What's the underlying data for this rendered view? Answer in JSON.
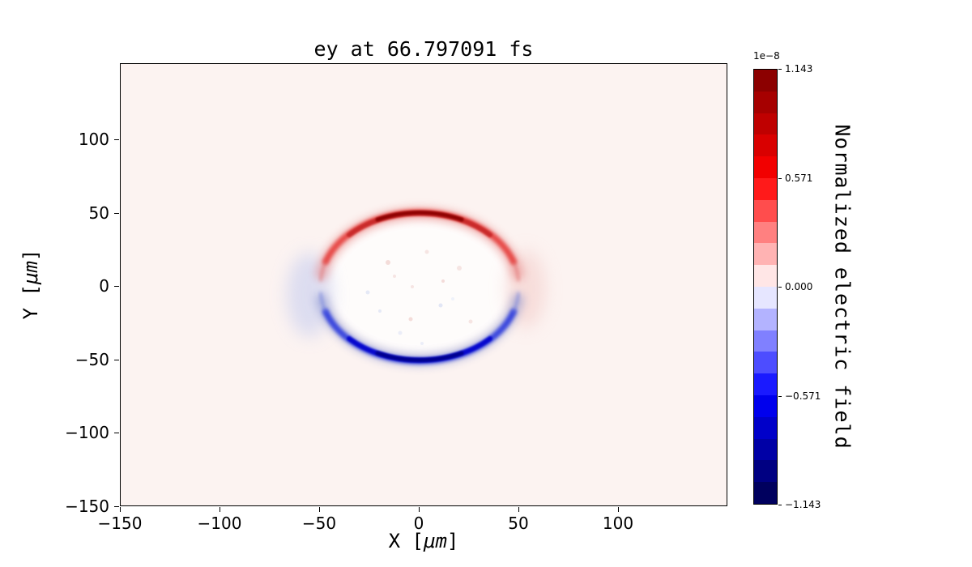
{
  "figure": {
    "title": "ey at 66.797091 fs"
  },
  "axes": {
    "xlabel": "X [μm]",
    "xlabel_parts": {
      "pre": "X [",
      "unit": "μm",
      "post": "]"
    },
    "ylabel": "Y [μm]",
    "ylabel_parts": {
      "pre": "Y [",
      "unit": "μm",
      "post": "]"
    },
    "x_ticks": [
      "−150",
      "−100",
      "−50",
      "0",
      "50",
      "100"
    ],
    "y_ticks": [
      "100",
      "50",
      "0",
      "−50",
      "−100",
      "−150"
    ]
  },
  "colorbar": {
    "label": "Normalized electric field",
    "offset_text": "1e−8",
    "ticks": [
      "1.143",
      "0.571",
      "0.000",
      "−0.571",
      "−1.143"
    ],
    "colormap": "seismic",
    "band_colors": [
      "#8c0000",
      "#a60000",
      "#bf0000",
      "#d90000",
      "#f20000",
      "#ff1a1a",
      "#ff4d4d",
      "#ff8080",
      "#ffb3b3",
      "#ffe6e6",
      "#e6e6ff",
      "#b3b3ff",
      "#8080ff",
      "#4d4dff",
      "#1a1aff",
      "#0000ed",
      "#0000c9",
      "#0000a6",
      "#000082",
      "#00005e"
    ]
  },
  "chart_data": {
    "type": "heatmap",
    "title": "ey at 66.797091 fs",
    "field": "ey",
    "time_fs": 66.797091,
    "xlabel": "X [μm]",
    "ylabel": "Y [μm]",
    "xlim": [
      -150,
      155
    ],
    "ylim": [
      -150,
      152
    ],
    "x_tick_values": [
      -150,
      -100,
      -50,
      0,
      50,
      100
    ],
    "y_tick_values": [
      100,
      50,
      0,
      -50,
      -100,
      -150
    ],
    "colorbar_label": "Normalized electric field",
    "colorbar_tick_values_1e8": [
      1.143,
      0.571,
      0.0,
      -0.571,
      -1.143
    ],
    "vmin": -1.143e-08,
    "vmax": 1.143e-08,
    "colormap": "seismic",
    "grid": false,
    "legend": "none",
    "features": [
      {
        "name": "positive-arc",
        "description": "Bright red arc along upper half of a ring of radius ~50 μm centered at origin, darkest (peak) at top (0, 50)",
        "center_um": [
          0,
          0
        ],
        "radius_um": 50,
        "angular_extent_deg": [
          15,
          165
        ],
        "peak_value": 1.1e-08
      },
      {
        "name": "negative-arc",
        "description": "Bright blue arc along lower half of the same ring, darkest (peak) at bottom (0, -50)",
        "center_um": [
          0,
          0
        ],
        "radius_um": 50,
        "angular_extent_deg": [
          195,
          345
        ],
        "peak_value": -1.1e-08
      },
      {
        "name": "diffuse-negative-patch",
        "description": "Faint light-blue smudge just outside ring on left side",
        "center_um": [
          -55,
          -5
        ],
        "approx_value": -2e-09
      },
      {
        "name": "diffuse-positive-patch",
        "description": "Faint light-red smudge just outside ring on right side",
        "center_um": [
          55,
          0
        ],
        "approx_value": 2e-09
      },
      {
        "name": "background",
        "description": "Near-zero slightly positive field everywhere else (very pale pink); speckled white noise inside ring",
        "approx_value": 3e-10
      }
    ]
  }
}
